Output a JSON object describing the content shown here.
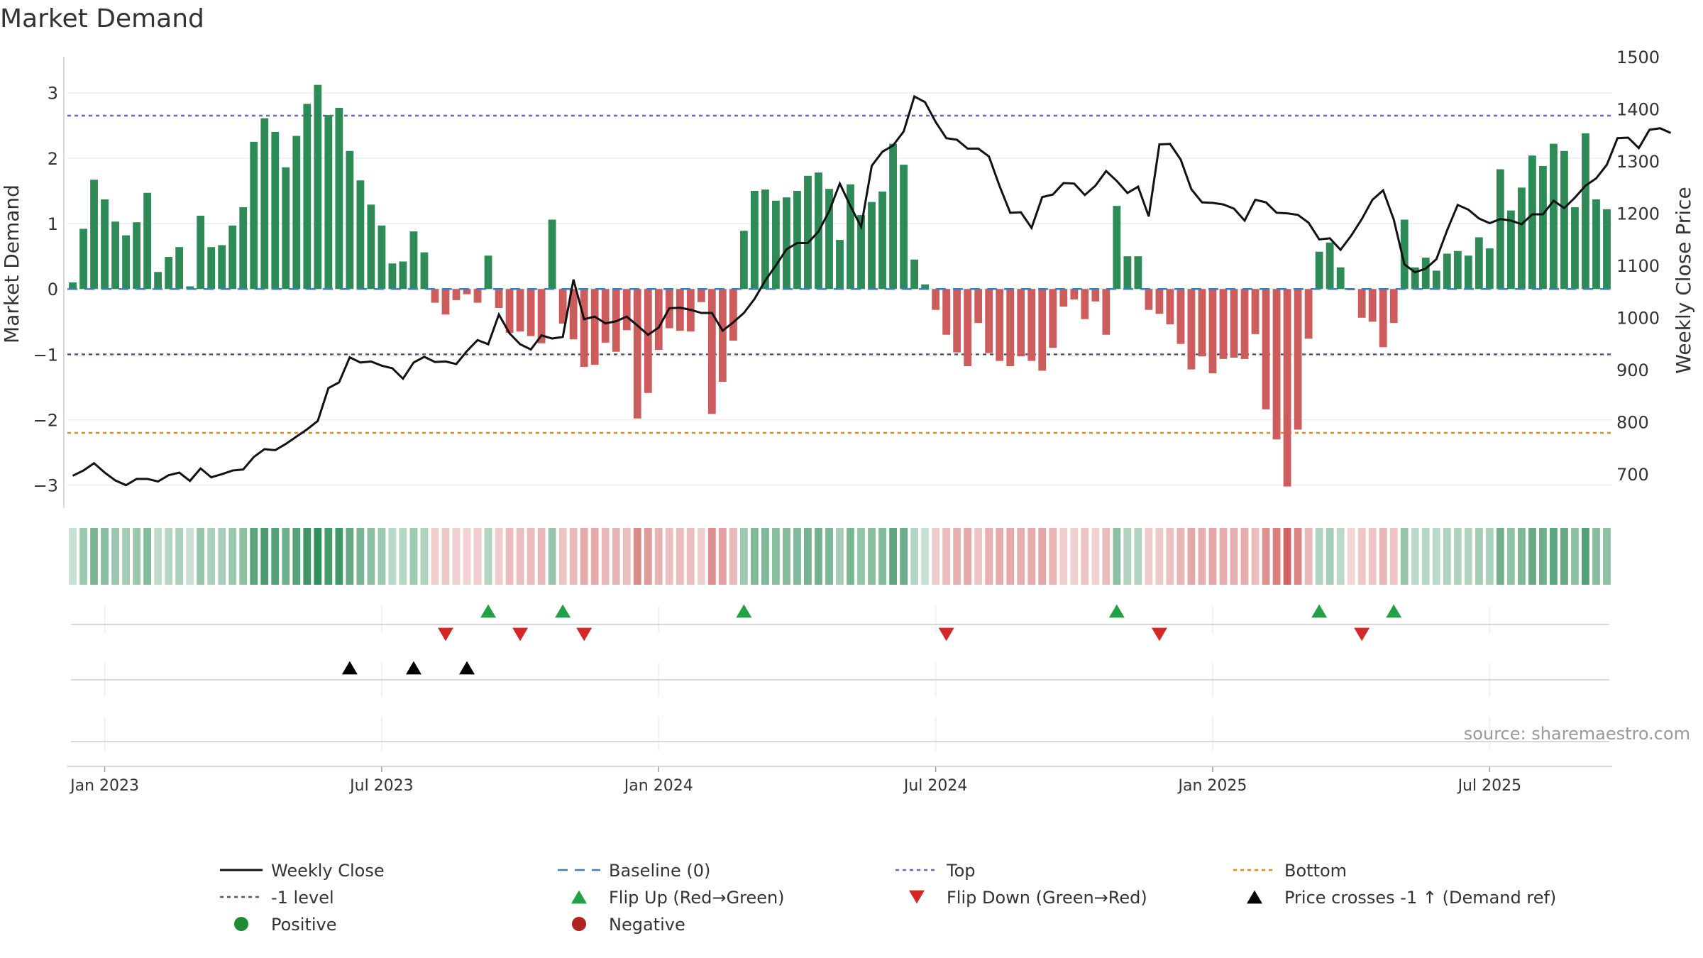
{
  "chart_data": {
    "type": "bar",
    "title": "Market Demand",
    "ylabel": "Market Demand",
    "y2label": "Weekly Close Price",
    "ylim": [
      -3.35,
      3.55
    ],
    "y_ticks": [
      "3",
      "2",
      "1",
      "0",
      "−1",
      "−2",
      "−3"
    ],
    "y_tick_values": [
      3,
      2,
      1,
      0,
      -1,
      -2,
      -3
    ],
    "y2lim": [
      635,
      1500
    ],
    "y2_ticks": [
      "1500",
      "1400",
      "1300",
      "1200",
      "1100",
      "1000",
      "900",
      "800",
      "700"
    ],
    "y2_tick_values": [
      1500,
      1400,
      1300,
      1200,
      1100,
      1000,
      900,
      800,
      700
    ],
    "x_ticks": [
      "Jan 2023",
      "Jul 2023",
      "Jan 2024",
      "Jul 2024",
      "Jan 2025",
      "Jul 2025"
    ],
    "x_tick_weeks": [
      3,
      29,
      55,
      81,
      107,
      133
    ],
    "reference_levels": {
      "top": 2.65,
      "minus_one": -1.0,
      "bottom": -2.2,
      "baseline": 0
    },
    "series": [
      {
        "name": "Market Demand",
        "values": [
          0.1,
          0.92,
          1.67,
          1.37,
          1.03,
          0.82,
          1.02,
          1.47,
          0.26,
          0.49,
          0.64,
          0.04,
          1.12,
          0.64,
          0.67,
          0.97,
          1.25,
          2.25,
          2.61,
          2.4,
          1.86,
          2.34,
          2.83,
          3.12,
          2.66,
          2.77,
          2.11,
          1.66,
          1.29,
          0.97,
          0.39,
          0.42,
          0.88,
          0.56,
          -0.21,
          -0.39,
          -0.17,
          -0.08,
          -0.21,
          0.51,
          -0.29,
          -0.67,
          -0.65,
          -0.72,
          -0.83,
          1.06,
          -0.53,
          -0.77,
          -1.19,
          -1.16,
          -0.82,
          -0.96,
          -0.63,
          -1.98,
          -1.59,
          -0.93,
          -0.6,
          -0.64,
          -0.65,
          -0.2,
          -1.91,
          -1.42,
          -0.79,
          0.89,
          1.5,
          1.52,
          1.35,
          1.4,
          1.5,
          1.73,
          1.78,
          1.53,
          0.75,
          1.6,
          1.13,
          1.33,
          1.49,
          2.22,
          1.9,
          0.45,
          0.07,
          -0.32,
          -0.7,
          -0.97,
          -1.18,
          -0.52,
          -0.98,
          -1.1,
          -1.18,
          -1.03,
          -1.1,
          -1.25,
          -0.9,
          -0.27,
          -0.16,
          -0.46,
          -0.19,
          -0.7,
          1.27,
          0.5,
          0.5,
          -0.32,
          -0.38,
          -0.54,
          -0.84,
          -1.23,
          -1.03,
          -1.29,
          -1.07,
          -1.05,
          -1.07,
          -0.69,
          -1.84,
          -2.3,
          -3.02,
          -2.15,
          -0.76,
          0.57,
          0.71,
          0.33,
          -0.02,
          -0.44,
          -0.5,
          -0.89,
          -0.52,
          1.06,
          0.33,
          0.48,
          0.28,
          0.54,
          0.58,
          0.51,
          0.79,
          0.62,
          1.83,
          1.2,
          1.55,
          2.04,
          1.88,
          2.22,
          2.11,
          1.25,
          2.38,
          1.37,
          1.22
        ]
      },
      {
        "name": "Weekly Close",
        "values": [
          697,
          707,
          721,
          703,
          688,
          679,
          691,
          691,
          686,
          698,
          703,
          687,
          711,
          694,
          700,
          707,
          709,
          733,
          748,
          746,
          758,
          772,
          786,
          802,
          865,
          876,
          924,
          914,
          916,
          908,
          903,
          883,
          914,
          925,
          915,
          916,
          911,
          936,
          957,
          949,
          1006,
          970,
          949,
          939,
          966,
          960,
          963,
          1073,
          997,
          1002,
          989,
          993,
          1002,
          985,
          967,
          981,
          1018,
          1019,
          1015,
          1009,
          1009,
          975,
          991,
          1009,
          1036,
          1071,
          1100,
          1131,
          1143,
          1143,
          1165,
          1204,
          1257,
          1214,
          1174,
          1291,
          1318,
          1330,
          1357,
          1424,
          1413,
          1375,
          1344,
          1341,
          1324,
          1324,
          1309,
          1252,
          1201,
          1202,
          1172,
          1231,
          1236,
          1258,
          1257,
          1235,
          1253,
          1281,
          1262,
          1239,
          1251,
          1194,
          1332,
          1333,
          1303,
          1246,
          1221,
          1220,
          1217,
          1209,
          1186,
          1226,
          1221,
          1201,
          1200,
          1197,
          1182,
          1150,
          1152,
          1130,
          1157,
          1189,
          1226,
          1244,
          1188,
          1102,
          1087,
          1094,
          1112,
          1167,
          1216,
          1207,
          1190,
          1181,
          1189,
          1186,
          1179,
          1198,
          1198,
          1224,
          1210,
          1230,
          1253,
          1267,
          1293,
          1344,
          1345,
          1325,
          1360,
          1363,
          1354
        ]
      }
    ],
    "flip_up_weeks": [
      39,
      46,
      63,
      98,
      117,
      124
    ],
    "flip_down_weeks": [
      35,
      42,
      48,
      82,
      102,
      121
    ],
    "price_cross_weeks": [
      26,
      32,
      37
    ],
    "source": "source: sharemaestro.com",
    "legend": [
      {
        "label": "Weekly Close",
        "icon": "line-icon",
        "color": "#111111"
      },
      {
        "label": "Baseline (0)",
        "icon": "dashed-line-icon",
        "color": "#3a7fbf"
      },
      {
        "label": "Top",
        "icon": "dotted-line-icon",
        "color": "#6666cc"
      },
      {
        "label": "Bottom",
        "icon": "dotted-line-icon",
        "color": "#e08a1e"
      },
      {
        "label": "-1 level",
        "icon": "dotted-line-icon",
        "color": "#555577"
      },
      {
        "label": "Flip Up (Red→Green)",
        "icon": "triangle-up-icon",
        "color": "#22a045"
      },
      {
        "label": "Flip Down (Green→Red)",
        "icon": "triangle-down-icon",
        "color": "#d62728"
      },
      {
        "label": "Price crosses -1 ↑ (Demand ref)",
        "icon": "triangle-up-icon",
        "color": "#000000"
      },
      {
        "label": "Positive",
        "icon": "circle-icon",
        "color": "#1e8c32"
      },
      {
        "label": "Negative",
        "icon": "circle-icon",
        "color": "#b22222"
      }
    ],
    "colors": {
      "positive": "#2e8b57",
      "negative": "#cd5c5c",
      "price": "#111111"
    }
  }
}
